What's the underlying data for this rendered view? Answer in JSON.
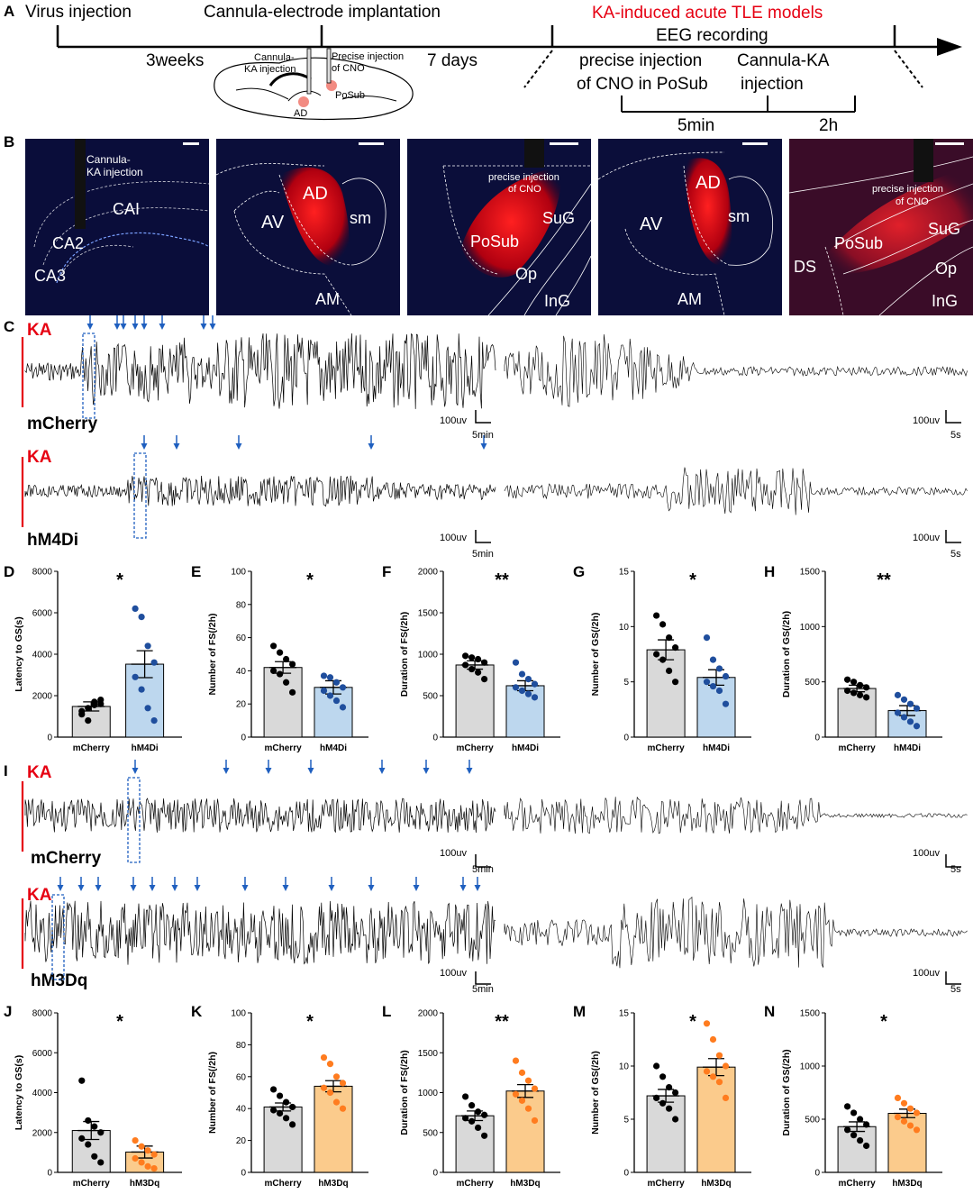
{
  "panels": {
    "A": "A",
    "B": "B",
    "C": "C",
    "D": "D",
    "E": "E",
    "F": "F",
    "G": "G",
    "H": "H",
    "I": "I",
    "J": "J",
    "K": "K",
    "L": "L",
    "M": "M",
    "N": "N"
  },
  "timeline": {
    "virus": "Virus injection",
    "cannula": "Cannula-electrode implantation",
    "ka_models": "KA-induced acute TLE models",
    "eeg": "EEG recording",
    "weeks": "3weeks",
    "days": "7 days",
    "cno_line1": "precise injection",
    "cno_line2": "of CNO in PoSub",
    "ka_line1": "Cannula-KA",
    "ka_line2": "injection",
    "t5min": "5min",
    "t2h": "2h",
    "brain_ka1": "Cannula-",
    "brain_ka2": "KA injection",
    "brain_cno1": "Precise injection",
    "brain_cno2": "of CNO",
    "brain_posub": "PoSub",
    "brain_ad": "AD"
  },
  "micrographs": [
    {
      "labels": [
        "Cannula-",
        "KA injection",
        "CAI",
        "CA2",
        "CA3"
      ]
    },
    {
      "labels": [
        "AD",
        "AV",
        "sm",
        "AM"
      ]
    },
    {
      "labels": [
        "precise injection",
        "of CNO",
        "PoSub",
        "SuG",
        "Op",
        "InG"
      ]
    },
    {
      "labels": [
        "AD",
        "AV",
        "sm",
        "AM"
      ]
    },
    {
      "labels": [
        "precise injection",
        "of CNO",
        "PoSub",
        "SuG",
        "DS",
        "Op",
        "InG"
      ]
    }
  ],
  "traces": {
    "ka": "KA",
    "mcherry": "mCherry",
    "hm4di": "hM4Di",
    "hm3dq": "hM3Dq",
    "scale_uv": "100uv",
    "scale_5min": "5min",
    "scale_5s": "5s"
  },
  "chart_data": [
    {
      "type": "bar",
      "panel": "D",
      "ylabel": "Latency to GS(s)",
      "categories": [
        "mCherry",
        "hM4Di"
      ],
      "ylim": [
        0,
        8000
      ],
      "yticks": [
        0,
        2000,
        4000,
        6000,
        8000
      ],
      "sig": "*",
      "values": [
        1480,
        3520
      ],
      "errors": [
        220,
        650
      ],
      "colors": [
        "#d9d9d9",
        "#bdd7ee"
      ],
      "dotColors": [
        "#000000",
        "#1f4e9d"
      ],
      "points": [
        [
          1100,
          1400,
          1700,
          1600,
          1250,
          800,
          1550,
          1800
        ],
        [
          6200,
          5800,
          4400,
          3600,
          2900,
          2300,
          1400,
          800
        ]
      ]
    },
    {
      "type": "bar",
      "panel": "E",
      "ylabel": "Number of FS(/2h)",
      "categories": [
        "mCherry",
        "hM4Di"
      ],
      "ylim": [
        0,
        100
      ],
      "yticks": [
        0,
        20,
        40,
        60,
        80,
        100
      ],
      "sig": "*",
      "values": [
        42,
        30
      ],
      "errors": [
        3.5,
        4
      ],
      "colors": [
        "#d9d9d9",
        "#bdd7ee"
      ],
      "dotColors": [
        "#000000",
        "#1f4e9d"
      ],
      "points": [
        [
          55,
          51,
          47,
          44,
          40,
          38,
          33,
          27
        ],
        [
          37,
          36,
          33,
          30,
          28,
          25,
          22,
          18
        ]
      ]
    },
    {
      "type": "bar",
      "panel": "F",
      "ylabel": "Duration of FS(/2h)",
      "categories": [
        "mCherry",
        "hM4Di"
      ],
      "ylim": [
        0,
        2000
      ],
      "yticks": [
        0,
        500,
        1000,
        1500,
        2000
      ],
      "sig": "**",
      "values": [
        870,
        620
      ],
      "errors": [
        50,
        60
      ],
      "colors": [
        "#d9d9d9",
        "#bdd7ee"
      ],
      "dotColors": [
        "#000000",
        "#1f4e9d"
      ],
      "points": [
        [
          980,
          960,
          940,
          900,
          870,
          820,
          780,
          700
        ],
        [
          900,
          760,
          700,
          640,
          600,
          560,
          520,
          480
        ]
      ]
    },
    {
      "type": "bar",
      "panel": "G",
      "ylabel": "Number of GS(/2h)",
      "categories": [
        "mCherry",
        "hM4Di"
      ],
      "ylim": [
        0,
        15
      ],
      "yticks": [
        0,
        5,
        10,
        15
      ],
      "sig": "*",
      "values": [
        7.9,
        5.4
      ],
      "errors": [
        0.9,
        0.7
      ],
      "colors": [
        "#d9d9d9",
        "#bdd7ee"
      ],
      "dotColors": [
        "#000000",
        "#1f4e9d"
      ],
      "points": [
        [
          11,
          10.2,
          9,
          8.1,
          7.5,
          7,
          6,
          5
        ],
        [
          9,
          7,
          6.2,
          5.5,
          5,
          4.6,
          4.2,
          3
        ]
      ]
    },
    {
      "type": "bar",
      "panel": "H",
      "ylabel": "Duration of GS(/2h)",
      "categories": [
        "mCherry",
        "hM4Di"
      ],
      "ylim": [
        0,
        1500
      ],
      "yticks": [
        0,
        500,
        1000,
        1500
      ],
      "sig": "**",
      "values": [
        440,
        240
      ],
      "errors": [
        30,
        45
      ],
      "colors": [
        "#d9d9d9",
        "#bdd7ee"
      ],
      "dotColors": [
        "#000000",
        "#1f4e9d"
      ],
      "points": [
        [
          520,
          500,
          470,
          450,
          420,
          400,
          380,
          360
        ],
        [
          380,
          340,
          300,
          260,
          220,
          180,
          140,
          100
        ]
      ]
    },
    {
      "type": "bar",
      "panel": "J",
      "ylabel": "Latency to GS(s)",
      "categories": [
        "mCherry",
        "hM3Dq"
      ],
      "ylim": [
        0,
        8000
      ],
      "yticks": [
        0,
        2000,
        4000,
        6000,
        8000
      ],
      "sig": "*",
      "values": [
        2100,
        1020
      ],
      "errors": [
        450,
        300
      ],
      "colors": [
        "#d9d9d9",
        "#fbcb8c"
      ],
      "dotColors": [
        "#000000",
        "#ff7c1f"
      ],
      "points": [
        [
          4600,
          2600,
          2300,
          2000,
          1700,
          1400,
          800,
          500
        ],
        [
          1600,
          1300,
          1100,
          900,
          700,
          500,
          300,
          200
        ]
      ]
    },
    {
      "type": "bar",
      "panel": "K",
      "ylabel": "Number of FS(/2h)",
      "categories": [
        "mCherry",
        "hM3Dq"
      ],
      "ylim": [
        0,
        100
      ],
      "yticks": [
        0,
        20,
        40,
        60,
        80,
        100
      ],
      "sig": "*",
      "values": [
        41,
        54
      ],
      "errors": [
        2.5,
        3.5
      ],
      "colors": [
        "#d9d9d9",
        "#fbcb8c"
      ],
      "dotColors": [
        "#000000",
        "#ff7c1f"
      ],
      "points": [
        [
          52,
          48,
          44,
          41,
          39,
          37,
          34,
          30
        ],
        [
          72,
          68,
          60,
          56,
          53,
          50,
          44,
          40
        ]
      ]
    },
    {
      "type": "bar",
      "panel": "L",
      "ylabel": "Duration of FS(/2h)",
      "categories": [
        "mCherry",
        "hM3Dq"
      ],
      "ylim": [
        0,
        2000
      ],
      "yticks": [
        0,
        500,
        1000,
        1500,
        2000
      ],
      "sig": "**",
      "values": [
        710,
        1020
      ],
      "errors": [
        60,
        80
      ],
      "colors": [
        "#d9d9d9",
        "#fbcb8c"
      ],
      "dotColors": [
        "#000000",
        "#ff7c1f"
      ],
      "points": [
        [
          950,
          840,
          760,
          720,
          680,
          640,
          560,
          460
        ],
        [
          1400,
          1250,
          1150,
          1050,
          980,
          900,
          800,
          650
        ]
      ]
    },
    {
      "type": "bar",
      "panel": "M",
      "ylabel": "Number of GS(/2h)",
      "categories": [
        "mCherry",
        "hM3Dq"
      ],
      "ylim": [
        0,
        15
      ],
      "yticks": [
        0,
        5,
        10,
        15
      ],
      "sig": "*",
      "values": [
        7.2,
        9.9
      ],
      "errors": [
        0.6,
        0.8
      ],
      "colors": [
        "#d9d9d9",
        "#fbcb8c"
      ],
      "dotColors": [
        "#000000",
        "#ff7c1f"
      ],
      "points": [
        [
          10,
          9,
          8,
          7.5,
          7,
          6.5,
          6,
          5
        ],
        [
          14,
          12.5,
          11,
          10,
          9.5,
          9,
          8.5,
          7
        ]
      ]
    },
    {
      "type": "bar",
      "panel": "N",
      "ylabel": "Duration of GS(/2h)",
      "categories": [
        "mCherry",
        "hM3Dq"
      ],
      "ylim": [
        0,
        1500
      ],
      "yticks": [
        0,
        500,
        1000,
        1500
      ],
      "sig": "*",
      "values": [
        430,
        555
      ],
      "errors": [
        45,
        40
      ],
      "colors": [
        "#d9d9d9",
        "#fbcb8c"
      ],
      "dotColors": [
        "#000000",
        "#ff7c1f"
      ],
      "points": [
        [
          620,
          560,
          500,
          450,
          400,
          350,
          300,
          250
        ],
        [
          700,
          650,
          600,
          560,
          520,
          480,
          440,
          400
        ]
      ]
    }
  ]
}
